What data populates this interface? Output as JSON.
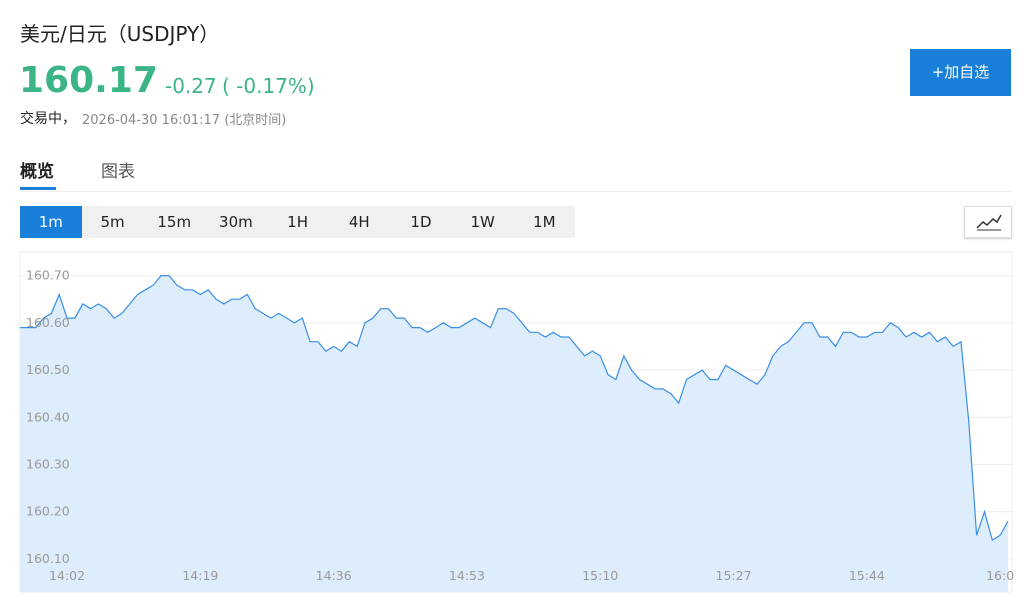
{
  "header": {
    "title": "美元/日元（USDJPY）",
    "price": "160.17",
    "change": "-0.27",
    "change_pct": "( -0.17%)",
    "status": "交易中，",
    "timestamp": "2026-04-30 16:01:17 (北京时间)",
    "button": "+加自选"
  },
  "tabs": [
    "概览",
    "图表"
  ],
  "timeframes": [
    "1m",
    "5m",
    "15m",
    "30m",
    "1H",
    "4H",
    "1D",
    "1W",
    "1M"
  ],
  "chart_data": {
    "type": "area",
    "color": "#3a8ee6",
    "fill": "#ddedfb",
    "grid": true,
    "values": [
      160.59,
      160.59,
      160.59,
      160.61,
      160.62,
      160.66,
      160.61,
      160.61,
      160.64,
      160.63,
      160.64,
      160.63,
      160.61,
      160.62,
      160.64,
      160.66,
      160.67,
      160.68,
      160.7,
      160.7,
      160.68,
      160.67,
      160.67,
      160.66,
      160.67,
      160.65,
      160.64,
      160.65,
      160.65,
      160.66,
      160.63,
      160.62,
      160.61,
      160.62,
      160.61,
      160.6,
      160.61,
      160.56,
      160.56,
      160.54,
      160.55,
      160.54,
      160.56,
      160.55,
      160.6,
      160.61,
      160.63,
      160.63,
      160.61,
      160.61,
      160.59,
      160.59,
      160.58,
      160.59,
      160.6,
      160.59,
      160.59,
      160.6,
      160.61,
      160.6,
      160.59,
      160.63,
      160.63,
      160.62,
      160.6,
      160.58,
      160.58,
      160.57,
      160.58,
      160.57,
      160.57,
      160.55,
      160.53,
      160.54,
      160.53,
      160.49,
      160.48,
      160.53,
      160.5,
      160.48,
      160.47,
      160.46,
      160.46,
      160.45,
      160.43,
      160.48,
      160.49,
      160.5,
      160.48,
      160.48,
      160.51,
      160.5,
      160.49,
      160.48,
      160.47,
      160.49,
      160.53,
      160.55,
      160.56,
      160.58,
      160.6,
      160.6,
      160.57,
      160.57,
      160.55,
      160.58,
      160.58,
      160.57,
      160.57,
      160.58,
      160.58,
      160.6,
      160.59,
      160.57,
      160.58,
      160.57,
      160.58,
      160.56,
      160.57,
      160.55,
      160.56,
      160.39,
      160.15,
      160.2,
      160.14,
      160.15,
      160.18
    ],
    "xlim": [
      0,
      126
    ],
    "xticks": [
      {
        "value": 6,
        "label": "14:02"
      },
      {
        "value": 23,
        "label": "14:19"
      },
      {
        "value": 40,
        "label": "14:36"
      },
      {
        "value": 57,
        "label": "14:53"
      },
      {
        "value": 74,
        "label": "15:10"
      },
      {
        "value": 91,
        "label": "15:27"
      },
      {
        "value": 108,
        "label": "15:44"
      },
      {
        "value": 125,
        "label": "16:0"
      }
    ],
    "ylim": [
      160.03,
      160.75
    ],
    "yticks": [
      {
        "value": 160.1,
        "label": "160.10"
      },
      {
        "value": 160.2,
        "label": "160.20"
      },
      {
        "value": 160.3,
        "label": "160.30"
      },
      {
        "value": 160.4,
        "label": "160.40"
      },
      {
        "value": 160.5,
        "label": "160.50"
      },
      {
        "value": 160.6,
        "label": "160.60"
      },
      {
        "value": 160.7,
        "label": "160.70"
      }
    ]
  }
}
